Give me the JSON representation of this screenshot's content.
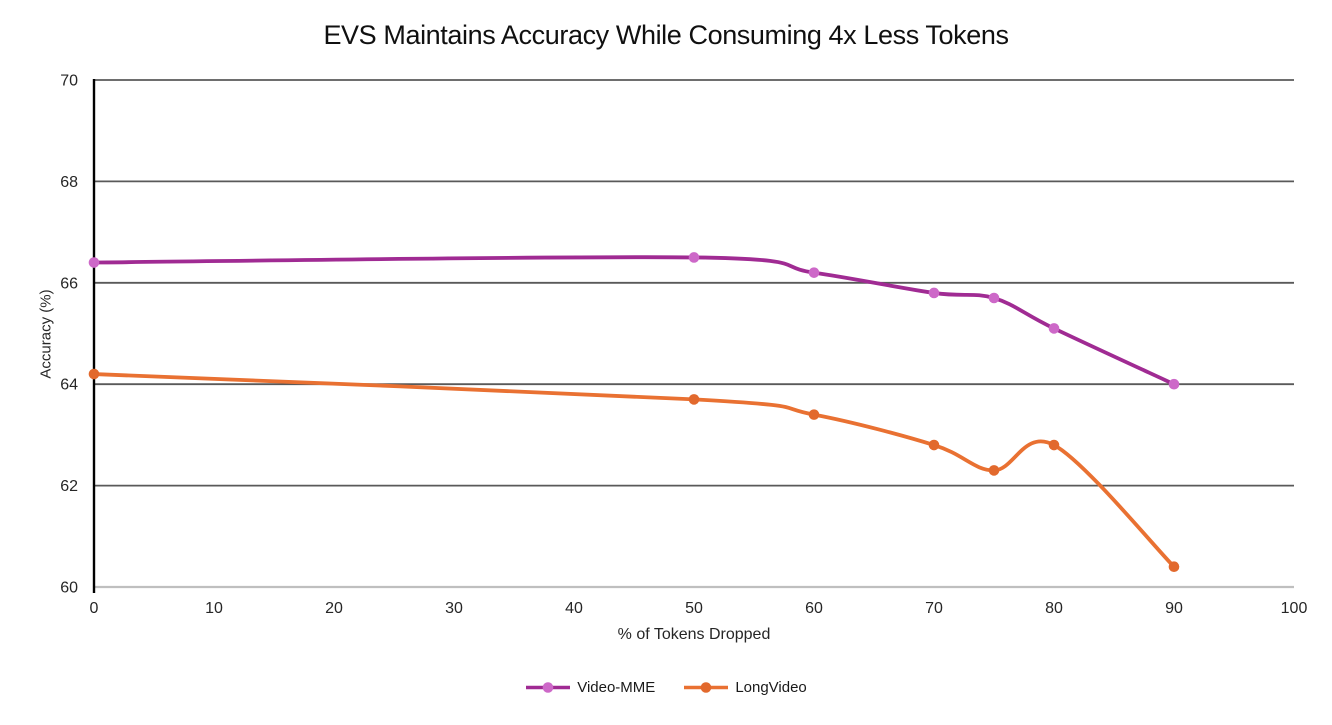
{
  "chart_data": {
    "type": "line",
    "title": "EVS Maintains Accuracy While Consuming 4x Less Tokens",
    "xlabel": "% of Tokens Dropped",
    "ylabel": "Accuracy (%)",
    "xlim": [
      0,
      100
    ],
    "ylim": [
      60,
      70
    ],
    "x_ticks": [
      0,
      10,
      20,
      30,
      40,
      50,
      60,
      70,
      80,
      90,
      100
    ],
    "y_ticks": [
      60,
      62,
      64,
      66,
      68,
      70
    ],
    "grid": "horizontal-on",
    "line_style": "smoothed-with-markers",
    "legend_position": "bottom-center",
    "series": [
      {
        "name": "Video-MME",
        "line_color": "#A02B93",
        "marker_color": "#CD68C8",
        "x": [
          0,
          50,
          60,
          70,
          75,
          80,
          90
        ],
        "y": [
          66.4,
          66.5,
          66.2,
          65.8,
          65.7,
          65.1,
          64.0
        ]
      },
      {
        "name": "LongVideo",
        "line_color": "#E97132",
        "marker_color": "#E2692D",
        "x": [
          0,
          50,
          60,
          70,
          75,
          80,
          90
        ],
        "y": [
          64.2,
          63.7,
          63.4,
          62.8,
          62.3,
          62.8,
          60.4
        ]
      }
    ],
    "colors": {
      "gridline": "#595959",
      "bottom_axis_line": "#BFBFBF",
      "y_axis_line": "#000000",
      "tick_text": "#262626",
      "title_text": "#101010",
      "background": "#FFFFFF"
    }
  }
}
